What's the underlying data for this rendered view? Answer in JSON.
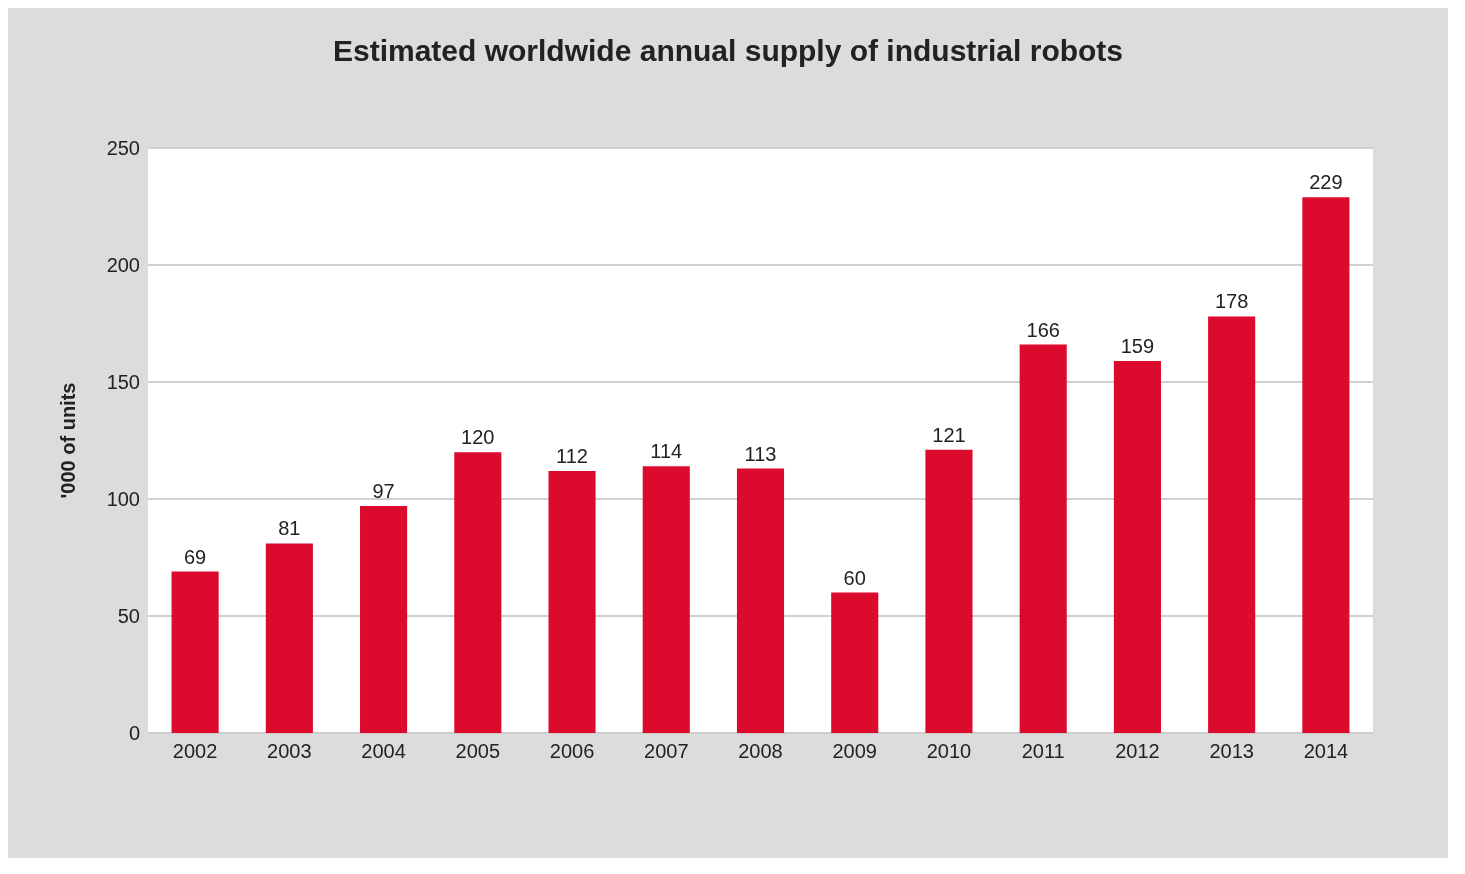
{
  "chart_data": {
    "type": "bar",
    "title": "Estimated worldwide annual supply of industrial robots",
    "ylabel": "'000 of units",
    "categories": [
      "2002",
      "2003",
      "2004",
      "2005",
      "2006",
      "2007",
      "2008",
      "2009",
      "2010",
      "2011",
      "2012",
      "2013",
      "2014"
    ],
    "values": [
      69,
      81,
      97,
      120,
      112,
      114,
      113,
      60,
      121,
      166,
      159,
      178,
      229
    ],
    "color": "#dc0a2d",
    "ylim": [
      0,
      250
    ],
    "yticks": [
      0,
      50,
      100,
      150,
      200,
      250
    ],
    "grid": "y",
    "data_labels": true
  }
}
